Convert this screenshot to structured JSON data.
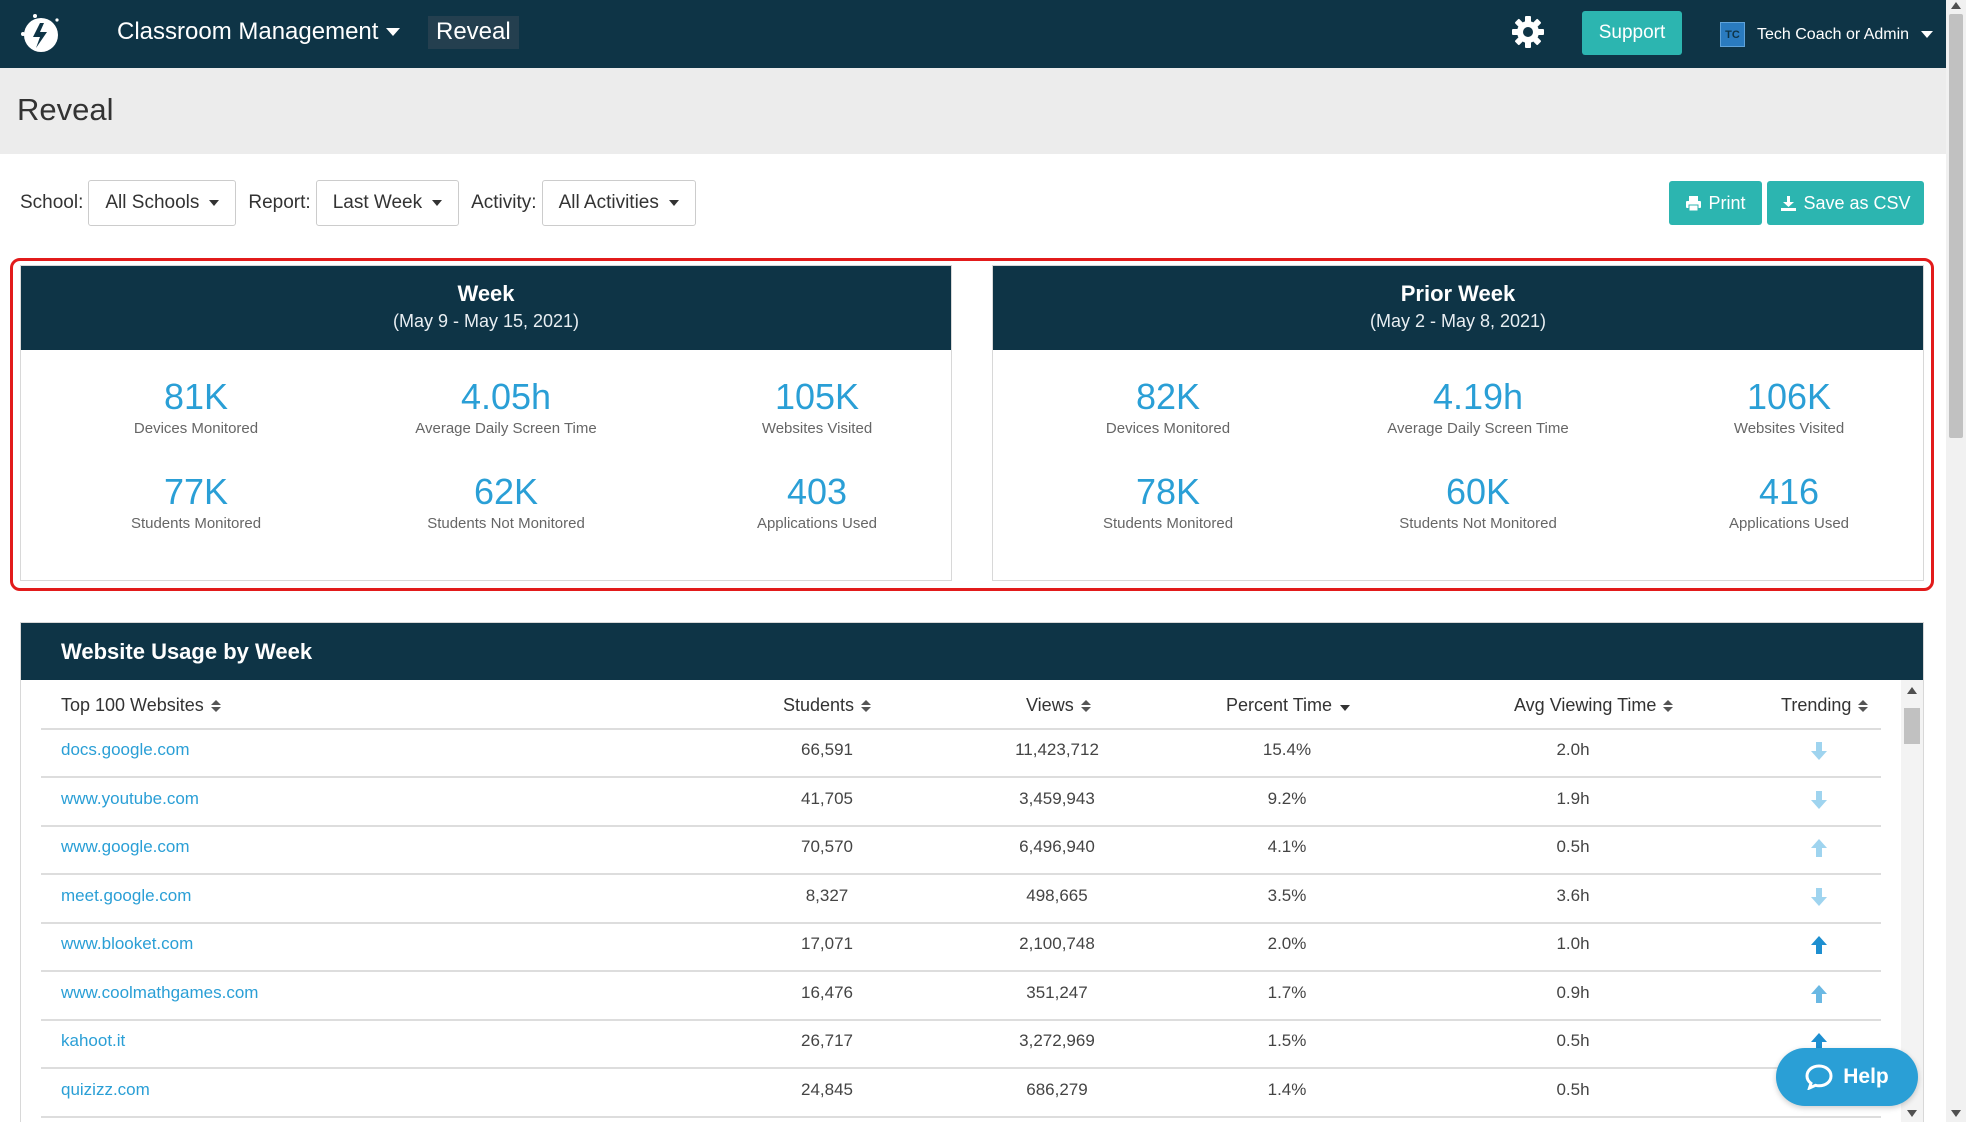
{
  "nav": {
    "menu_label": "Classroom Management",
    "current_app": "Reveal",
    "support_label": "Support",
    "user_initials": "TC",
    "user_name": "Tech Coach or Admin"
  },
  "page": {
    "title": "Reveal"
  },
  "filters": {
    "school_label": "School:",
    "school_value": "All Schools",
    "report_label": "Report:",
    "report_value": "Last Week",
    "activity_label": "Activity:",
    "activity_value": "All Activities"
  },
  "actions": {
    "print_label": "Print",
    "csv_label": "Save as CSV"
  },
  "panels": [
    {
      "title": "Week",
      "subtitle": "(May 9 - May 15, 2021)",
      "stats": [
        {
          "value": "81K",
          "label": "Devices Monitored"
        },
        {
          "value": "4.05h",
          "label": "Average Daily Screen Time"
        },
        {
          "value": "105K",
          "label": "Websites Visited"
        },
        {
          "value": "77K",
          "label": "Students Monitored"
        },
        {
          "value": "62K",
          "label": "Students Not Monitored"
        },
        {
          "value": "403",
          "label": "Applications Used"
        }
      ]
    },
    {
      "title": "Prior Week",
      "subtitle": "(May 2 - May 8, 2021)",
      "stats": [
        {
          "value": "82K",
          "label": "Devices Monitored"
        },
        {
          "value": "4.19h",
          "label": "Average Daily Screen Time"
        },
        {
          "value": "106K",
          "label": "Websites Visited"
        },
        {
          "value": "78K",
          "label": "Students Monitored"
        },
        {
          "value": "60K",
          "label": "Students Not Monitored"
        },
        {
          "value": "416",
          "label": "Applications Used"
        }
      ]
    }
  ],
  "usage": {
    "title": "Website Usage by Week",
    "columns": [
      "Top 100 Websites",
      "Students",
      "Views",
      "Percent Time",
      "Avg Viewing Time",
      "Trending"
    ],
    "rows": [
      {
        "site": "docs.google.com",
        "students": "66,591",
        "views": "11,423,712",
        "percent": "15.4%",
        "avg": "2.0h",
        "trend": "down-light"
      },
      {
        "site": "www.youtube.com",
        "students": "41,705",
        "views": "3,459,943",
        "percent": "9.2%",
        "avg": "1.9h",
        "trend": "down-light"
      },
      {
        "site": "www.google.com",
        "students": "70,570",
        "views": "6,496,940",
        "percent": "4.1%",
        "avg": "0.5h",
        "trend": "up-light"
      },
      {
        "site": "meet.google.com",
        "students": "8,327",
        "views": "498,665",
        "percent": "3.5%",
        "avg": "3.6h",
        "trend": "down-light"
      },
      {
        "site": "www.blooket.com",
        "students": "17,071",
        "views": "2,100,748",
        "percent": "2.0%",
        "avg": "1.0h",
        "trend": "up-dark"
      },
      {
        "site": "www.coolmathgames.com",
        "students": "16,476",
        "views": "351,247",
        "percent": "1.7%",
        "avg": "0.9h",
        "trend": "up-mid"
      },
      {
        "site": "kahoot.it",
        "students": "26,717",
        "views": "3,272,969",
        "percent": "1.5%",
        "avg": "0.5h",
        "trend": "up-dark"
      },
      {
        "site": "quizizz.com",
        "students": "24,845",
        "views": "686,279",
        "percent": "1.4%",
        "avg": "0.5h",
        "trend": "up-dark"
      }
    ]
  },
  "help_label": "Help",
  "colors": {
    "navy": "#0e3446",
    "teal": "#2cb5b0",
    "stat_blue": "#2a9fd6",
    "highlight_red": "#e21b1b",
    "trend_light": "#9fd4ef",
    "trend_dark": "#1e8fd0"
  }
}
